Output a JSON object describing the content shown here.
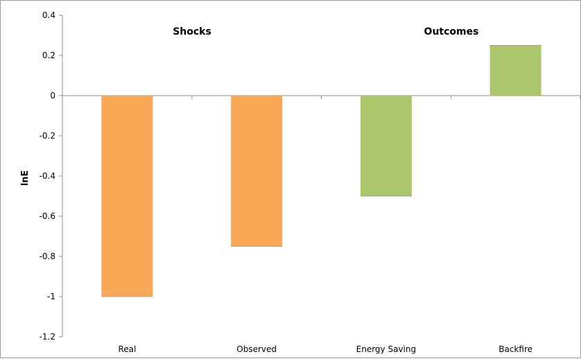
{
  "chart_data": {
    "type": "bar",
    "categories": [
      "Real",
      "Observed",
      "Energy Saving",
      "Backfire"
    ],
    "values": [
      -1.0,
      -0.75,
      -0.5,
      0.25
    ],
    "colors": [
      "#f9a857",
      "#f9a857",
      "#acc66b",
      "#acc66b"
    ],
    "ylabel": "lnE",
    "xlabel": "",
    "ylim": [
      -1.2,
      0.4
    ],
    "yticks": [
      0.4,
      0.2,
      0,
      -0.2,
      -0.4,
      -0.6,
      -0.8,
      -1,
      -1.2
    ],
    "ytick_labels": [
      "0.4",
      "0.2",
      "0",
      "-0.2",
      "-0.4",
      "-0.6",
      "-0.8",
      "-1",
      "-1.2"
    ],
    "annotations": [
      "Shocks",
      "Outcomes"
    ],
    "grid": false,
    "legend": "none"
  }
}
